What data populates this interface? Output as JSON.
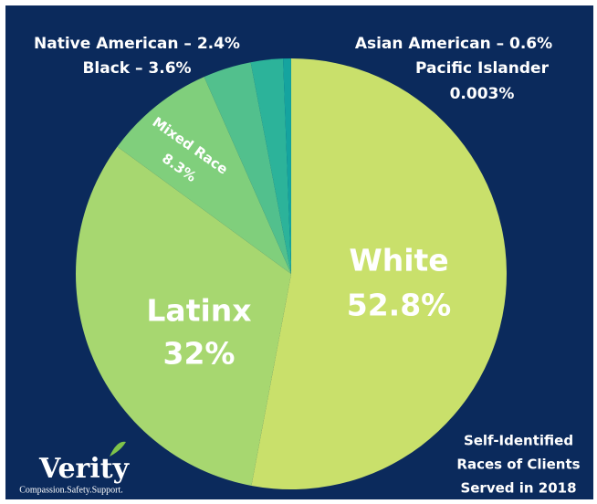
{
  "chart_data": {
    "type": "pie",
    "categories": [
      "White",
      "Latinx",
      "Mixed Race",
      "Black – 3.6%",
      "Native American – 2.4%",
      "Asian American – 0.6%",
      "Pacific Islander"
    ],
    "values": [
      52.8,
      32,
      8.3,
      3.6,
      2.4,
      0.6,
      0.003
    ],
    "value_labels": [
      "52.8%",
      "32%",
      "8.3%",
      null,
      null,
      null,
      "0.003%"
    ],
    "colors": [
      "#c9e06b",
      "#a7d770",
      "#80cf7c",
      "#52c08d",
      "#2cb39a",
      "#15a49f",
      "#0c8f9c"
    ],
    "subtitle": [
      "Self-Identified",
      "Races of Clients",
      "Served in 2018"
    ]
  },
  "logo": {
    "name": "Verity",
    "tagline": "Compassion.Safety.Support."
  }
}
